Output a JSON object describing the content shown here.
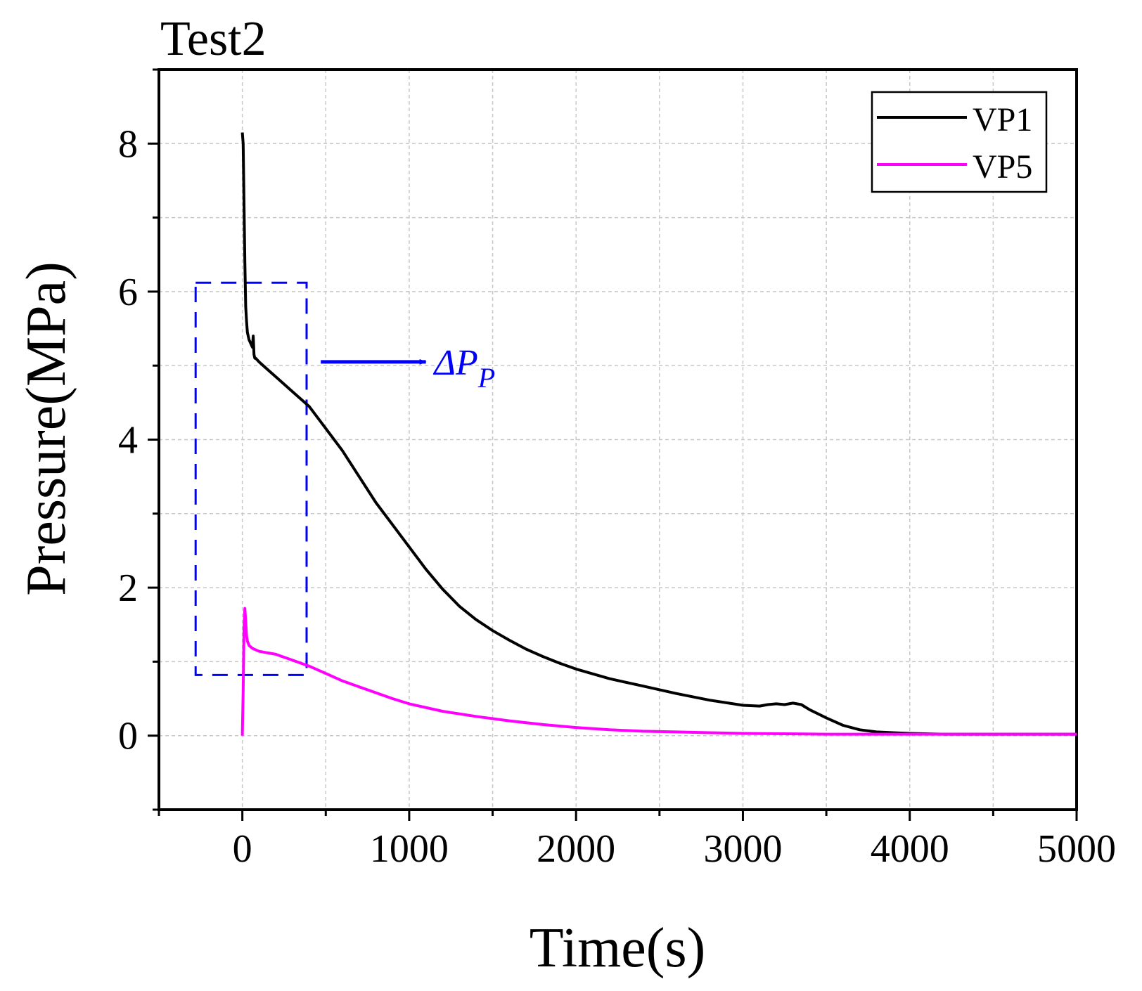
{
  "chart_data": {
    "type": "line",
    "title": "Test2",
    "xlabel": "Time(s)",
    "ylabel": "Pressure(MPa)",
    "xlim": [
      -500,
      5000
    ],
    "ylim": [
      -1,
      9
    ],
    "xticks": [
      0,
      1000,
      2000,
      3000,
      4000,
      5000
    ],
    "yticks": [
      0,
      2,
      4,
      6,
      8
    ],
    "xtick_labels": [
      "0",
      "1000",
      "2000",
      "3000",
      "4000",
      "5000"
    ],
    "ytick_labels": [
      "0",
      "2",
      "4",
      "6",
      "8"
    ],
    "grid": true,
    "legend_position": "top-right",
    "series": [
      {
        "name": "VP1",
        "color": "#000000",
        "x": [
          0,
          5,
          10,
          15,
          20,
          25,
          30,
          40,
          50,
          60,
          65,
          70,
          75,
          80,
          100,
          150,
          200,
          300,
          400,
          500,
          600,
          700,
          800,
          900,
          1000,
          1100,
          1200,
          1300,
          1400,
          1500,
          1600,
          1700,
          1800,
          1900,
          2000,
          2200,
          2400,
          2600,
          2800,
          3000,
          3100,
          3150,
          3200,
          3250,
          3300,
          3350,
          3400,
          3500,
          3600,
          3700,
          3800,
          3900,
          4000,
          4200,
          4500,
          5000
        ],
        "y": [
          8.15,
          8.0,
          7.2,
          6.4,
          5.8,
          5.6,
          5.45,
          5.35,
          5.3,
          5.25,
          5.4,
          5.15,
          5.1,
          5.1,
          5.05,
          4.95,
          4.85,
          4.65,
          4.45,
          4.15,
          3.85,
          3.5,
          3.15,
          2.85,
          2.55,
          2.25,
          1.98,
          1.75,
          1.57,
          1.42,
          1.29,
          1.17,
          1.07,
          0.98,
          0.9,
          0.77,
          0.67,
          0.57,
          0.48,
          0.41,
          0.4,
          0.42,
          0.43,
          0.42,
          0.44,
          0.42,
          0.35,
          0.24,
          0.14,
          0.08,
          0.05,
          0.04,
          0.03,
          0.02,
          0.02,
          0.02
        ]
      },
      {
        "name": "VP5",
        "color": "#ff00ff",
        "x": [
          0,
          5,
          10,
          15,
          20,
          25,
          30,
          40,
          60,
          100,
          150,
          200,
          250,
          300,
          400,
          500,
          600,
          700,
          800,
          900,
          1000,
          1200,
          1400,
          1600,
          1800,
          2000,
          2200,
          2400,
          2600,
          2800,
          3000,
          3500,
          4000,
          4500,
          5000
        ],
        "y": [
          0.0,
          0.6,
          1.45,
          1.72,
          1.55,
          1.35,
          1.28,
          1.22,
          1.18,
          1.14,
          1.12,
          1.1,
          1.06,
          1.02,
          0.94,
          0.84,
          0.74,
          0.66,
          0.58,
          0.5,
          0.43,
          0.33,
          0.26,
          0.2,
          0.15,
          0.11,
          0.08,
          0.06,
          0.05,
          0.04,
          0.03,
          0.02,
          0.02,
          0.02,
          0.02
        ]
      }
    ],
    "annotations": [
      {
        "type": "dashed-box",
        "color": "#0000ff",
        "x_range": [
          -280,
          385
        ],
        "y_range": [
          0.82,
          6.12
        ]
      },
      {
        "type": "arrow",
        "color": "#0000ff",
        "from": [
          470,
          5.05
        ],
        "to": [
          1100,
          5.05
        ]
      },
      {
        "type": "label",
        "color": "#0000ff",
        "text_main": "ΔP",
        "text_sub": "P",
        "at": [
          1150,
          5.05
        ]
      }
    ]
  }
}
